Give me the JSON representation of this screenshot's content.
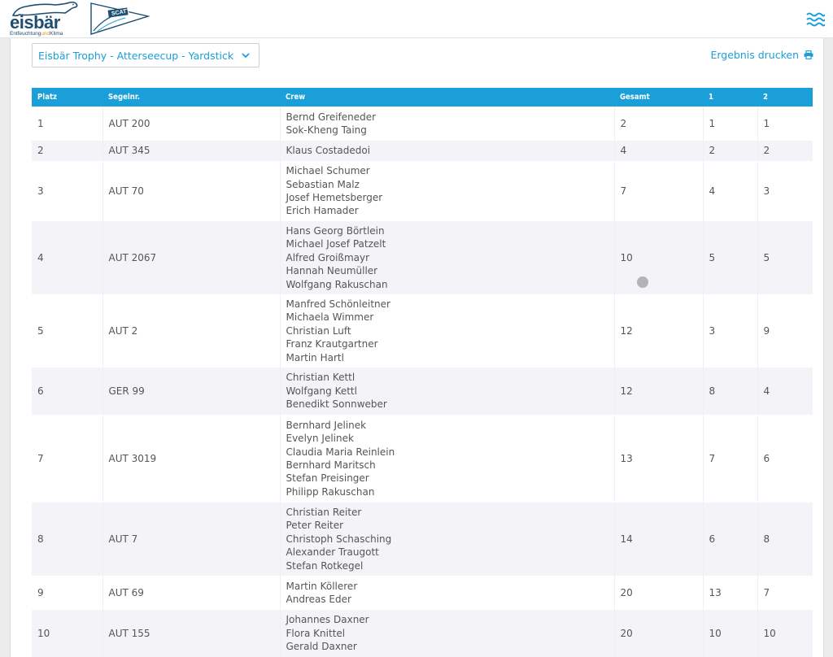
{
  "brand": {
    "eisbaer_word": "eisbär",
    "eisbaer_tag_a": "Entfeuchtung",
    "eisbaer_tag_b": "und",
    "eisbaer_tag_c": "Klima",
    "scatt_word": "SCATT",
    "colors": {
      "primary": "#1a9fd8",
      "logo": "#1c4e72",
      "accent": "#e2962b"
    }
  },
  "header": {
    "menu_icon": "waves-menu-icon"
  },
  "regatta_select": {
    "value": "Eisbär Trophy - Atterseecup - Yardstick"
  },
  "print": {
    "label": "Ergebnis drucken",
    "icon": "printer-icon"
  },
  "table": {
    "headers": [
      "Platz",
      "Segelnr.",
      "Crew",
      "Gesamt",
      "1",
      "2"
    ],
    "rows": [
      {
        "platz": "1",
        "segelnr": "AUT 200",
        "crew": [
          "Bernd Greifeneder",
          "Sok-Kheng Taing"
        ],
        "gesamt": "2",
        "r1": "1",
        "r2": "1"
      },
      {
        "platz": "2",
        "segelnr": "AUT 345",
        "crew": [
          "Klaus Costadedoi"
        ],
        "gesamt": "4",
        "r1": "2",
        "r2": "2"
      },
      {
        "platz": "3",
        "segelnr": "AUT 70",
        "crew": [
          "Michael Schumer",
          "Sebastian  Malz",
          "Josef Hemetsberger",
          "Erich Hamader"
        ],
        "gesamt": "7",
        "r1": "4",
        "r2": "3"
      },
      {
        "platz": "4",
        "segelnr": "AUT 2067",
        "crew": [
          "Hans Georg Börtlein",
          "Michael Josef Patzelt",
          "Alfred Groißmayr",
          "Hannah Neumüller",
          "Wolfgang Rakuschan"
        ],
        "gesamt": "10",
        "r1": "5",
        "r2": "5"
      },
      {
        "platz": "5",
        "segelnr": "AUT 2",
        "crew": [
          "Manfred Schönleitner",
          "Michaela Wimmer",
          "Christian Luft",
          "Franz  Krautgartner",
          "Martin Hartl"
        ],
        "gesamt": "12",
        "r1": "3",
        "r2": "9"
      },
      {
        "platz": "6",
        "segelnr": "GER 99",
        "crew": [
          "Christian Kettl",
          "Wolfgang Kettl",
          "Benedikt Sonnweber"
        ],
        "gesamt": "12",
        "r1": "8",
        "r2": "4"
      },
      {
        "platz": "7",
        "segelnr": "AUT 3019",
        "crew": [
          "Bernhard Jelinek",
          "Evelyn Jelinek",
          "Claudia Maria Reinlein",
          "Bernhard Maritsch",
          "Stefan Preisinger",
          "Philipp Rakuschan"
        ],
        "gesamt": "13",
        "r1": "7",
        "r2": "6"
      },
      {
        "platz": "8",
        "segelnr": "AUT 7",
        "crew": [
          "Christian Reiter",
          "Peter Reiter",
          "Christoph Schasching",
          "Alexander Traugott",
          "Stefan Rotkegel"
        ],
        "gesamt": "14",
        "r1": "6",
        "r2": "8"
      },
      {
        "platz": "9",
        "segelnr": "AUT 69",
        "crew": [
          "Martin Köllerer",
          "Andreas Eder"
        ],
        "gesamt": "20",
        "r1": "13",
        "r2": "7"
      },
      {
        "platz": "10",
        "segelnr": "AUT 155",
        "crew": [
          "Johannes Daxner",
          "Flora Knittel",
          "Gerald Daxner"
        ],
        "gesamt": "20",
        "r1": "10",
        "r2": "10"
      }
    ]
  }
}
